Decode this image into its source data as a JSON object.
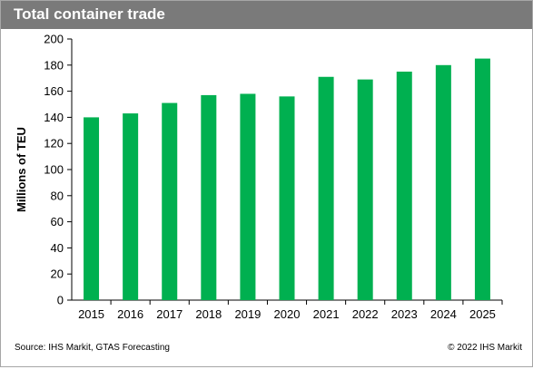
{
  "header": {
    "title": "Total container trade"
  },
  "footer": {
    "source": "Source: IHS Markit, GTAS Forecasting",
    "copyright": "© 2022 IHS Markit"
  },
  "colors": {
    "bar": "#00b050",
    "title_bg": "#7a7a7a",
    "axis": "#000000"
  },
  "chart_data": {
    "type": "bar",
    "title": "Total container trade",
    "xlabel": "",
    "ylabel": "Millions of TEU",
    "categories": [
      "2015",
      "2016",
      "2017",
      "2018",
      "2019",
      "2020",
      "2021",
      "2022",
      "2023",
      "2024",
      "2025"
    ],
    "values": [
      140,
      143,
      151,
      157,
      158,
      156,
      171,
      169,
      175,
      180,
      185
    ],
    "ylim": [
      0,
      200
    ],
    "yticks": [
      0,
      20,
      40,
      60,
      80,
      100,
      120,
      140,
      160,
      180,
      200
    ],
    "grid": false,
    "legend": "none"
  }
}
